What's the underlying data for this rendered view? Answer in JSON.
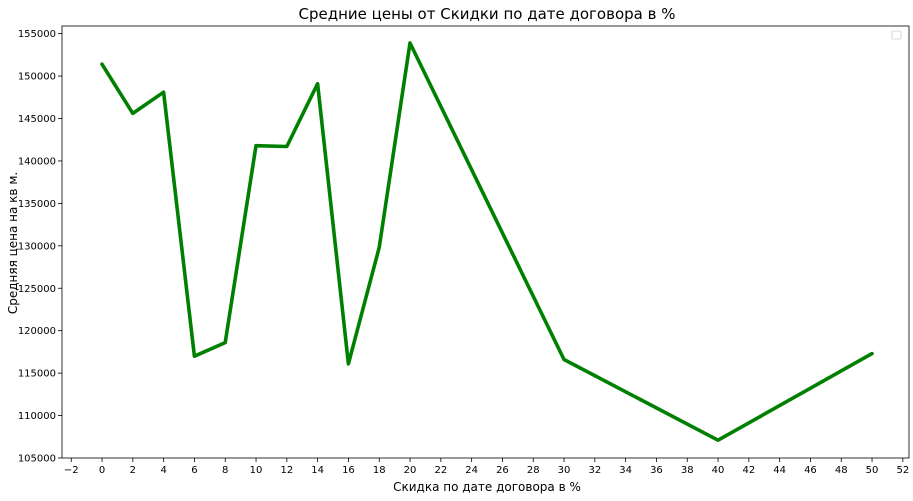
{
  "chart_data": {
    "type": "line",
    "title": "Средние цены от Скидки по дате договора в %",
    "xlabel": "Скидка по дате договора в %",
    "ylabel": "Средняя цена на кв м.",
    "xlim": [
      -2.6,
      52.4
    ],
    "ylim": [
      105000,
      155900
    ],
    "x_ticks": [
      -2,
      0,
      2,
      4,
      6,
      8,
      10,
      12,
      14,
      16,
      18,
      20,
      22,
      24,
      26,
      28,
      30,
      32,
      34,
      36,
      38,
      40,
      42,
      44,
      46,
      48,
      50,
      52
    ],
    "y_ticks": [
      105000,
      110000,
      115000,
      120000,
      125000,
      130000,
      135000,
      140000,
      145000,
      150000,
      155000
    ],
    "grid": false,
    "legend": "top-right (empty)",
    "series": [
      {
        "color": "#008000",
        "x": [
          0,
          2,
          4,
          6,
          8,
          10,
          12,
          14,
          16,
          18,
          20,
          30,
          40,
          50
        ],
        "y": [
          151400,
          145600,
          148100,
          117000,
          118600,
          141800,
          141700,
          149100,
          116100,
          129800,
          153900,
          116600,
          107100,
          117300
        ]
      }
    ]
  }
}
